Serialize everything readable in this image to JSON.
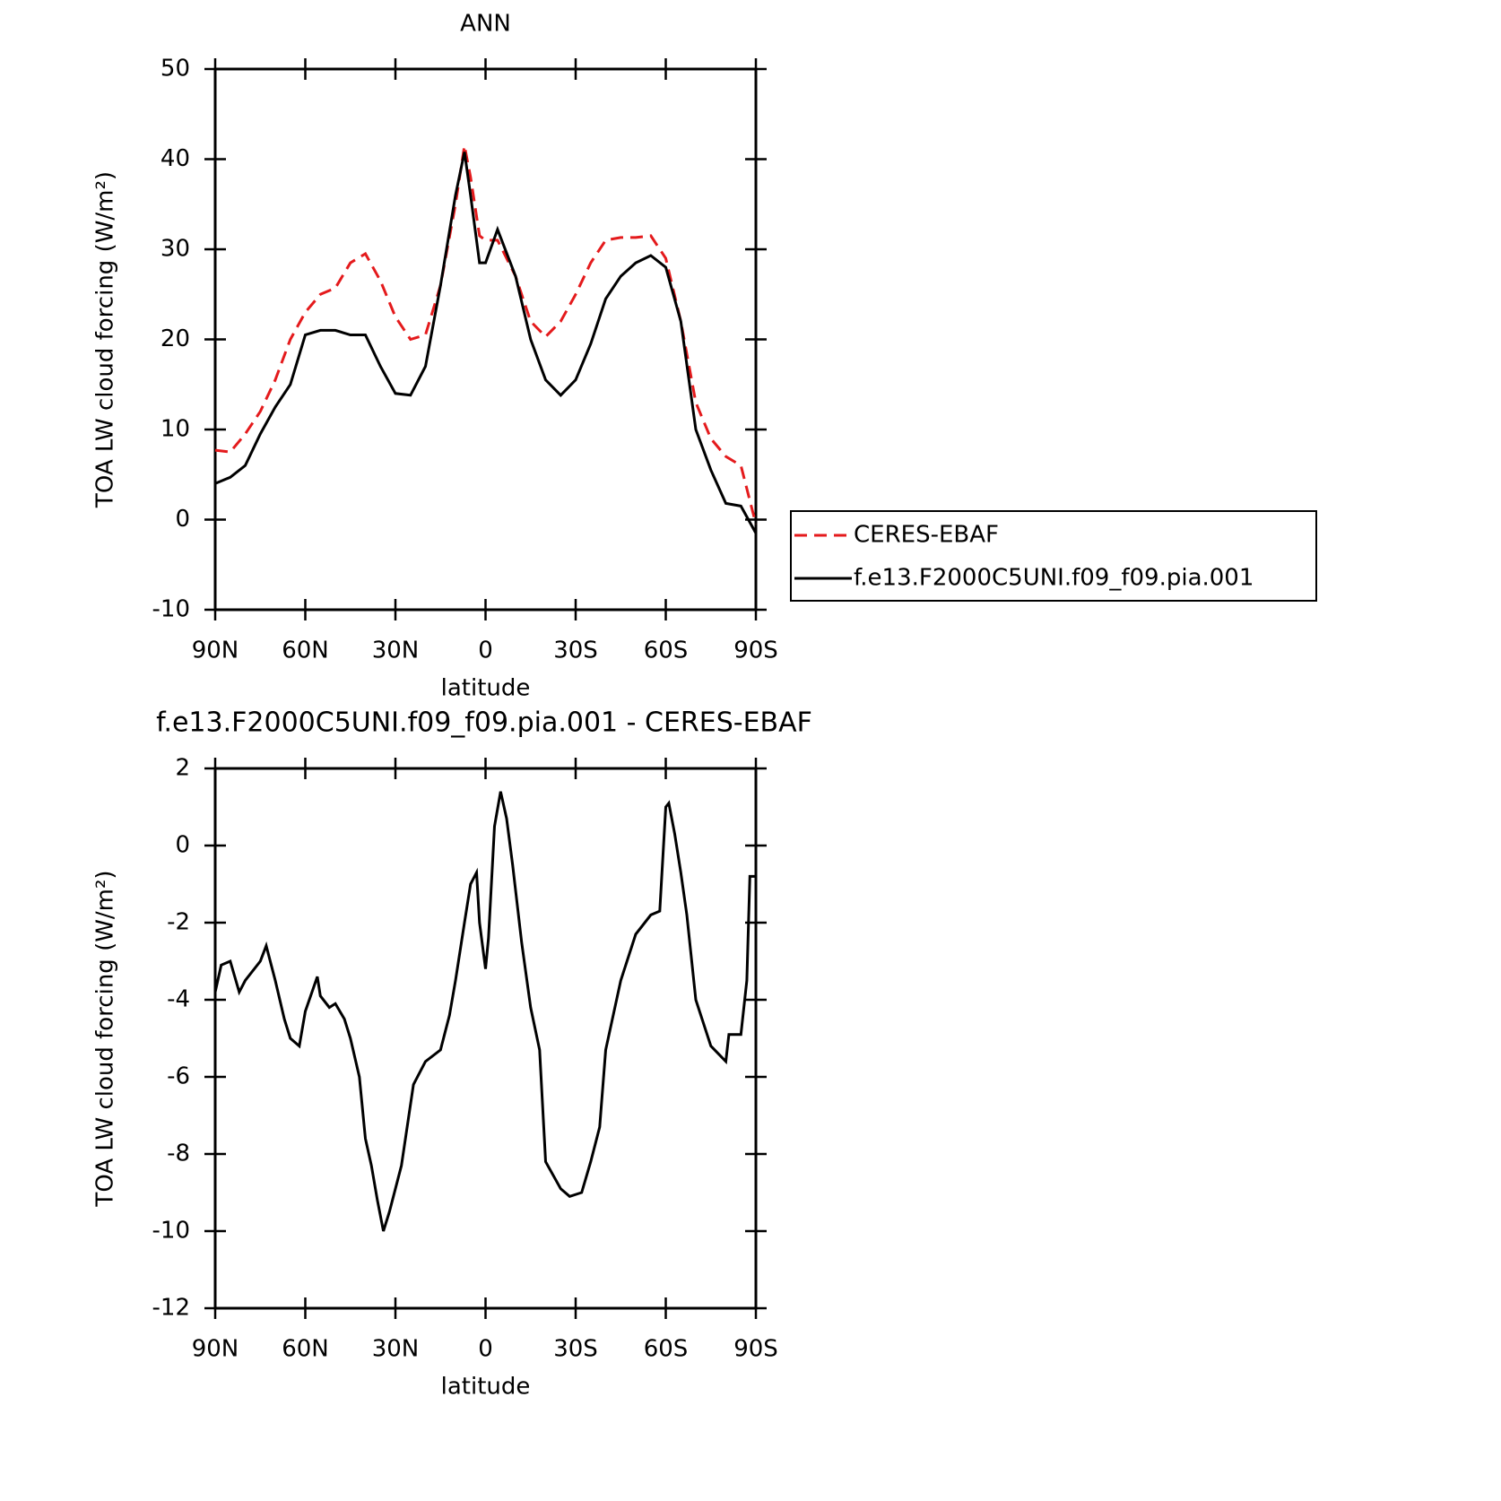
{
  "chart_data": [
    {
      "type": "line",
      "title": "ANN",
      "xlabel": "latitude",
      "ylabel": "TOA LW cloud forcing (W/m²)",
      "xlim": [
        90,
        -90
      ],
      "xticks": [
        {
          "value": 90,
          "label": "90N"
        },
        {
          "value": 60,
          "label": "60N"
        },
        {
          "value": 30,
          "label": "30N"
        },
        0,
        {
          "value": -30,
          "label": "30S"
        },
        {
          "value": -60,
          "label": "60S"
        },
        {
          "value": -90,
          "label": "90S"
        }
      ],
      "ylim": [
        -10,
        50
      ],
      "yticks": [
        -10,
        0,
        10,
        20,
        30,
        40,
        50
      ],
      "legend": "right",
      "x": [
        90,
        85,
        80,
        75,
        70,
        65,
        60,
        55,
        50,
        45,
        40,
        35,
        30,
        25,
        20,
        15,
        10,
        7,
        5,
        2,
        0,
        -4,
        -10,
        -15,
        -20,
        -25,
        -30,
        -35,
        -40,
        -45,
        -50,
        -55,
        -60,
        -65,
        -70,
        -75,
        -80,
        -85,
        -90
      ],
      "series": [
        {
          "name": "CERES-EBAF",
          "color": "#e41a1c",
          "dash": true,
          "values": [
            7.7,
            7.5,
            9.5,
            12,
            15.5,
            20,
            23,
            25,
            25.7,
            28.5,
            29.5,
            26.5,
            22.5,
            20,
            20.5,
            26,
            35,
            41.5,
            38,
            31.5,
            31,
            31,
            27,
            22,
            20.3,
            22,
            25,
            28.5,
            31,
            31.3,
            31.3,
            31.5,
            29,
            22,
            13,
            9,
            7,
            6,
            -0.5
          ]
        },
        {
          "name": "f.e13.F2000C5UNI.f09_f09.pia.001",
          "color": "#000000",
          "dash": false,
          "values": [
            4,
            4.7,
            6,
            9.5,
            12.5,
            15,
            20.5,
            21,
            21,
            20.5,
            20.5,
            17,
            14,
            13.8,
            17,
            26,
            36,
            40.8,
            36,
            28.5,
            28.5,
            32.2,
            27,
            20,
            15.5,
            13.8,
            15.5,
            19.5,
            24.5,
            27,
            28.5,
            29.3,
            28,
            22,
            10,
            5.5,
            1.8,
            1.5,
            -1.5
          ]
        }
      ]
    },
    {
      "type": "line",
      "title": "f.e13.F2000C5UNI.f09_f09.pia.001 - CERES-EBAF",
      "xlabel": "latitude",
      "ylabel": "TOA LW cloud forcing (W/m²)",
      "xlim": [
        90,
        -90
      ],
      "xticks": [
        {
          "value": 90,
          "label": "90N"
        },
        {
          "value": 60,
          "label": "60N"
        },
        {
          "value": 30,
          "label": "30N"
        },
        0,
        {
          "value": -30,
          "label": "30S"
        },
        {
          "value": -60,
          "label": "60S"
        },
        {
          "value": -90,
          "label": "90S"
        }
      ],
      "ylim": [
        -12,
        2
      ],
      "yticks": [
        -12,
        -10,
        -8,
        -6,
        -4,
        -2,
        0,
        2
      ],
      "x": [
        90,
        88,
        85,
        82,
        80,
        75,
        73,
        70,
        67,
        65,
        62,
        60,
        56,
        55,
        52,
        50,
        47,
        45,
        42,
        40,
        38,
        36,
        34,
        32,
        28,
        24,
        20,
        15,
        12,
        10,
        7,
        5,
        3,
        2,
        0,
        -1,
        -3,
        -5,
        -7,
        -9,
        -12,
        -15,
        -18,
        -20,
        -25,
        -28,
        -32,
        -35,
        -38,
        -40,
        -45,
        -50,
        -55,
        -58,
        -60,
        -61,
        -63,
        -65,
        -67,
        -70,
        -75,
        -80,
        -81,
        -85,
        -87,
        -88,
        -90
      ],
      "series": [
        {
          "name": null,
          "color": "#000000",
          "dash": false,
          "values": [
            -3.8,
            -3.1,
            -3,
            -3.8,
            -3.5,
            -3,
            -2.6,
            -3.5,
            -4.5,
            -5,
            -5.2,
            -4.3,
            -3.4,
            -3.9,
            -4.2,
            -4.1,
            -4.5,
            -5,
            -6,
            -7.6,
            -8.3,
            -9.2,
            -10,
            -9.5,
            -8.3,
            -6.2,
            -5.6,
            -5.3,
            -4.4,
            -3.5,
            -2,
            -1,
            -0.7,
            -2,
            -3.2,
            -2.4,
            0.5,
            1.4,
            0.7,
            -0.5,
            -2.5,
            -4.2,
            -5.3,
            -8.2,
            -8.9,
            -9.1,
            -9.0,
            -8.2,
            -7.3,
            -5.3,
            -3.5,
            -2.3,
            -1.8,
            -1.7,
            1,
            1.1,
            0.3,
            -0.7,
            -1.8,
            -4,
            -5.2,
            -5.6,
            -4.9,
            -4.9,
            -3.5,
            -0.8,
            -0.8
          ]
        }
      ]
    }
  ]
}
